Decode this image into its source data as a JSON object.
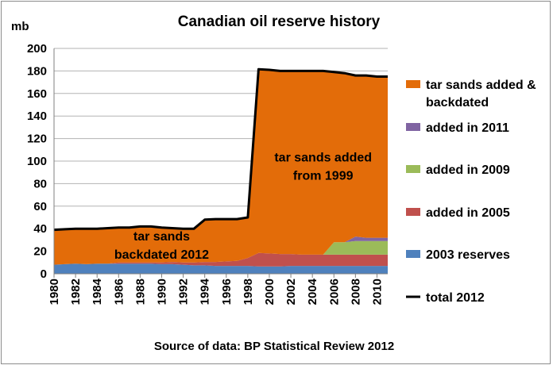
{
  "chart_data": {
    "type": "area",
    "title": "Canadian oil reserve history",
    "ylabel": "mb",
    "xlabel": "",
    "ylim": [
      0,
      200
    ],
    "yticks": [
      0,
      20,
      40,
      60,
      80,
      100,
      120,
      140,
      160,
      180,
      200
    ],
    "grid": true,
    "legend_position": "right",
    "source": "Source of data: BP Statistical Review 2012",
    "x": [
      1980,
      1981,
      1982,
      1983,
      1984,
      1985,
      1986,
      1987,
      1988,
      1989,
      1990,
      1991,
      1992,
      1993,
      1994,
      1995,
      1996,
      1997,
      1998,
      1999,
      2000,
      2001,
      2002,
      2003,
      2004,
      2005,
      2006,
      2007,
      2008,
      2009,
      2010,
      2011
    ],
    "xtick_labels": [
      "1980",
      "1982",
      "1984",
      "1986",
      "1988",
      "1990",
      "1992",
      "1994",
      "1996",
      "1998",
      "2000",
      "2002",
      "2004",
      "2006",
      "2008",
      "2010"
    ],
    "series": [
      {
        "name": "2003 reserves",
        "color": "#4f81bd",
        "values": [
          8,
          8.5,
          9,
          8.5,
          9,
          9,
          9,
          9,
          9,
          9,
          8.5,
          8.5,
          8,
          7.5,
          7.5,
          7,
          7,
          7,
          7,
          6.5,
          6.5,
          6.5,
          7,
          7,
          7,
          7,
          7,
          7,
          7,
          7,
          7,
          7
        ]
      },
      {
        "name": "added in 2005",
        "color": "#c0504d",
        "values": [
          0,
          0,
          0,
          0,
          0,
          0,
          1,
          1,
          1,
          1,
          1.5,
          2,
          2,
          2.5,
          3,
          3.5,
          4,
          4.5,
          7,
          12,
          11.5,
          11,
          10.5,
          10,
          10,
          10,
          10,
          10,
          10,
          10,
          10,
          10
        ]
      },
      {
        "name": "added in 2009",
        "color": "#9bbb59",
        "values": [
          0,
          0,
          0,
          0,
          0,
          0,
          0,
          0,
          0,
          0,
          0,
          0,
          0,
          0,
          0,
          0,
          0,
          0,
          0,
          0,
          0,
          0,
          0,
          0,
          0,
          0,
          11,
          11,
          12,
          12,
          12,
          12
        ]
      },
      {
        "name": "added in 2011",
        "color": "#8064a2",
        "values": [
          0,
          0,
          0,
          0,
          0,
          0,
          0,
          0,
          0,
          0,
          0,
          0,
          0,
          0,
          0,
          0,
          0,
          0,
          0,
          0,
          0,
          0,
          0,
          0,
          0,
          0,
          0,
          0,
          4,
          3,
          3,
          3
        ]
      },
      {
        "name": "tar sands added & backdated",
        "color": "#e36c09",
        "values": [
          31,
          31,
          31,
          31.5,
          31,
          31.5,
          31,
          31,
          32,
          32,
          31,
          30,
          30,
          30,
          37.5,
          38,
          37.5,
          37,
          36,
          163,
          163,
          162,
          162.5,
          163,
          163,
          163,
          151,
          150,
          143,
          144,
          143,
          143
        ]
      }
    ],
    "total": {
      "name": "total 2012",
      "color": "#000000",
      "values": [
        39,
        39.5,
        40,
        40,
        40,
        40.5,
        41,
        41,
        42,
        42,
        41,
        40.5,
        40,
        40,
        48,
        48.5,
        48.5,
        48.5,
        50,
        181.5,
        181,
        180,
        180,
        180,
        180,
        180,
        179,
        178,
        176,
        176,
        175,
        175
      ]
    },
    "annotations": [
      {
        "text": "tar sands",
        "x": 1990,
        "y": 33
      },
      {
        "text": "backdated 2012",
        "x": 1990,
        "y": 17
      },
      {
        "text": "tar sands added",
        "x": 2005,
        "y": 103
      },
      {
        "text": "from 1999",
        "x": 2005,
        "y": 87
      }
    ],
    "legend": [
      {
        "lines": [
          "tar sands added &",
          "backdated"
        ],
        "color": "#e36c09",
        "kind": "box"
      },
      {
        "lines": [
          "added in 2011"
        ],
        "color": "#8064a2",
        "kind": "box"
      },
      {
        "lines": [
          "added in 2009"
        ],
        "color": "#9bbb59",
        "kind": "box"
      },
      {
        "lines": [
          "added in 2005"
        ],
        "color": "#c0504d",
        "kind": "box"
      },
      {
        "lines": [
          "2003 reserves"
        ],
        "color": "#4f81bd",
        "kind": "box"
      },
      {
        "lines": [
          "total 2012"
        ],
        "color": "#000000",
        "kind": "line"
      }
    ]
  }
}
